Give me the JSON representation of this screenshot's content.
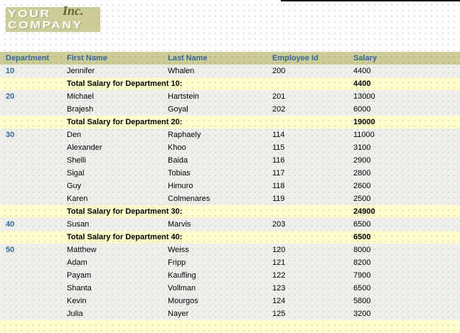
{
  "logo": {
    "word1": "YOUR",
    "word2": "COMPANY",
    "suffix": "Inc."
  },
  "colors": {
    "header_bg": "#cccc99",
    "header_text": "#336699",
    "department_text": "#336699",
    "total_row_bg": "#ffffcc",
    "logo_bg": "#cccc99",
    "logo_suffix_text": "#666633"
  },
  "table": {
    "columns": [
      "Department",
      "First Name",
      "Last Name",
      "Employee Id",
      "Salary"
    ],
    "groups": [
      {
        "department": "10",
        "rows": [
          {
            "first": "Jennifer",
            "last": "Whalen",
            "id": "200",
            "salary": "4400"
          }
        ],
        "total_label": "Total Salary for Department 10:",
        "total": "4400"
      },
      {
        "department": "20",
        "rows": [
          {
            "first": "Michael",
            "last": "Hartstein",
            "id": "201",
            "salary": "13000"
          },
          {
            "first": "Brajesh",
            "last": "Goyal",
            "id": "202",
            "salary": "6000"
          }
        ],
        "total_label": "Total Salary for Department 20:",
        "total": "19000"
      },
      {
        "department": "30",
        "rows": [
          {
            "first": "Den",
            "last": "Raphaely",
            "id": "114",
            "salary": "11000"
          },
          {
            "first": "Alexander",
            "last": "Khoo",
            "id": "115",
            "salary": "3100"
          },
          {
            "first": "Shelli",
            "last": "Baida",
            "id": "116",
            "salary": "2900"
          },
          {
            "first": "Sigal",
            "last": "Tobias",
            "id": "117",
            "salary": "2800"
          },
          {
            "first": "Guy",
            "last": "Himuro",
            "id": "118",
            "salary": "2600"
          },
          {
            "first": "Karen",
            "last": "Colmenares",
            "id": "119",
            "salary": "2500"
          }
        ],
        "total_label": "Total Salary for Department 30:",
        "total": "24900"
      },
      {
        "department": "40",
        "rows": [
          {
            "first": "Susan",
            "last": "Marvis",
            "id": "203",
            "salary": "6500"
          }
        ],
        "total_label": "Total Salary for Department 40:",
        "total": "6500"
      },
      {
        "department": "50",
        "rows": [
          {
            "first": "Matthew",
            "last": "Weiss",
            "id": "120",
            "salary": "8000"
          },
          {
            "first": "Adam",
            "last": "Fripp",
            "id": "121",
            "salary": "8200"
          },
          {
            "first": "Payam",
            "last": "Kaufling",
            "id": "122",
            "salary": "7900"
          },
          {
            "first": "Shanta",
            "last": "Vollman",
            "id": "123",
            "salary": "6500"
          },
          {
            "first": "Kevin",
            "last": "Mourgos",
            "id": "124",
            "salary": "5800"
          },
          {
            "first": "Julia",
            "last": "Nayer",
            "id": "125",
            "salary": "3200"
          }
        ],
        "total_label": "",
        "total": ""
      }
    ]
  }
}
